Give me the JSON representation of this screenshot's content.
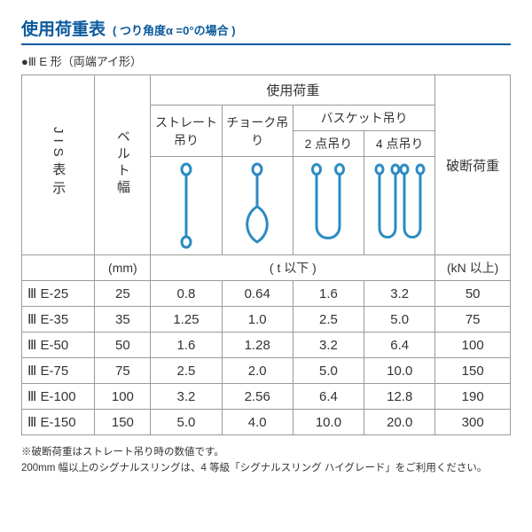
{
  "colors": {
    "accent": "#0a5a9e",
    "border": "#9a9a9a",
    "text": "#333333",
    "sling": "#2b8bc2"
  },
  "header": {
    "title": "使用荷重表",
    "subtitle": "( つり角度α =0°の場合 )",
    "subheading": "●Ⅲ E 形（両端アイ形）"
  },
  "table": {
    "headers": {
      "jis": "JIS表示",
      "belt": "ベルト幅",
      "use_load": "使用荷重",
      "straight": "ストレート吊り",
      "choke": "チョーク吊り",
      "basket": "バスケット吊り",
      "basket2": "2 点吊り",
      "basket4": "4 点吊り",
      "break": "破断荷重"
    },
    "units": {
      "belt": "(mm)",
      "use": "( t 以下 )",
      "break": "(kN 以上)"
    },
    "rows": [
      {
        "jis": "Ⅲ E-25",
        "belt": "25",
        "straight": "0.8",
        "choke": "0.64",
        "b2": "1.6",
        "b4": "3.2",
        "break": "50"
      },
      {
        "jis": "Ⅲ E-35",
        "belt": "35",
        "straight": "1.25",
        "choke": "1.0",
        "b2": "2.5",
        "b4": "5.0",
        "break": "75"
      },
      {
        "jis": "Ⅲ E-50",
        "belt": "50",
        "straight": "1.6",
        "choke": "1.28",
        "b2": "3.2",
        "b4": "6.4",
        "break": "100"
      },
      {
        "jis": "Ⅲ E-75",
        "belt": "75",
        "straight": "2.5",
        "choke": "2.0",
        "b2": "5.0",
        "b4": "10.0",
        "break": "150"
      },
      {
        "jis": "Ⅲ E-100",
        "belt": "100",
        "straight": "3.2",
        "choke": "2.56",
        "b2": "6.4",
        "b4": "12.8",
        "break": "190"
      },
      {
        "jis": "Ⅲ E-150",
        "belt": "150",
        "straight": "5.0",
        "choke": "4.0",
        "b2": "10.0",
        "b4": "20.0",
        "break": "300"
      }
    ]
  },
  "footnote": {
    "l1": "※破断荷重はストレート吊り時の数値です。",
    "l2": "200mm 幅以上のシグナルスリングは、4 等級「シグナルスリング ハイグレード」をご利用ください。"
  }
}
